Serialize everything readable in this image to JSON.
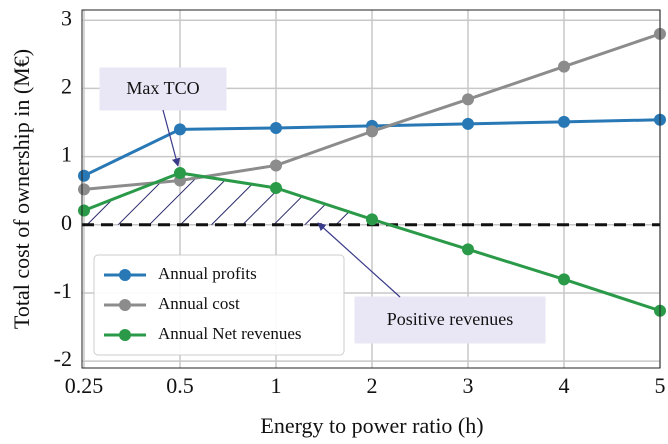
{
  "chart_data": {
    "type": "line",
    "xlabel": "Energy to power ratio (h)",
    "ylabel": "Total cost of ownership in (M€)",
    "categories": [
      "0.25",
      "0.5",
      "1",
      "2",
      "3",
      "4",
      "5"
    ],
    "series": [
      {
        "name": "Annual profits",
        "color": "#2878b5",
        "values": [
          0.72,
          1.4,
          1.42,
          1.45,
          1.48,
          1.51,
          1.54
        ]
      },
      {
        "name": "Annual cost",
        "color": "#8c8c8c",
        "values": [
          0.52,
          0.65,
          0.87,
          1.37,
          1.84,
          2.32,
          2.8
        ]
      },
      {
        "name": "Annual Net revenues",
        "color": "#2a9a48",
        "values": [
          0.21,
          0.76,
          0.54,
          0.08,
          -0.36,
          -0.8,
          -1.26
        ]
      }
    ],
    "ylim": [
      -2.1,
      3.15
    ],
    "yticks": [
      -2,
      -1,
      0,
      1,
      2,
      3
    ],
    "grid": true,
    "legend": "lower left",
    "annotations": [
      "Max TCO",
      "Positive revenues"
    ]
  }
}
